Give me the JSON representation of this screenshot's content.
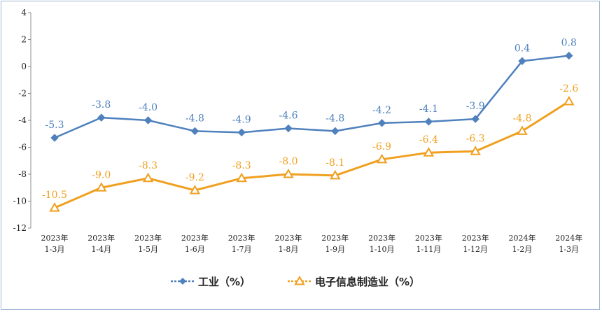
{
  "chart_data": {
    "type": "line",
    "title": "",
    "xlabel": "",
    "ylabel": "",
    "ylim": [
      -12,
      4
    ],
    "yticks": [
      4,
      2,
      0,
      -2,
      -4,
      -6,
      -8,
      -10,
      -12
    ],
    "categories": [
      [
        "2023年",
        "1-3月"
      ],
      [
        "2023年",
        "1-4月"
      ],
      [
        "2023年",
        "1-5月"
      ],
      [
        "2023年",
        "1-6月"
      ],
      [
        "2023年",
        "1-7月"
      ],
      [
        "2023年",
        "1-8月"
      ],
      [
        "2023年",
        "1-9月"
      ],
      [
        "2023年",
        "1-10月"
      ],
      [
        "2023年",
        "1-11月"
      ],
      [
        "2023年",
        "1-12月"
      ],
      [
        "2024年",
        "1-2月"
      ],
      [
        "2024年",
        "1-3月"
      ]
    ],
    "series": [
      {
        "name": "工业（%）",
        "color": "#4f81bd",
        "marker": "diamond",
        "values": [
          -5.3,
          -3.8,
          -4.0,
          -4.8,
          -4.9,
          -4.6,
          -4.8,
          -4.2,
          -4.1,
          -3.9,
          0.4,
          0.8
        ],
        "labels": [
          "-5.3",
          "-3.8",
          "-4.0",
          "-4.8",
          "-4.9",
          "-4.6",
          "-4.8",
          "-4.2",
          "-4.1",
          "-3.9",
          "0.4",
          "0.8"
        ]
      },
      {
        "name": "电子信息制造业（%）",
        "color": "#f0a020",
        "marker": "triangle",
        "values": [
          -10.5,
          -9.0,
          -8.3,
          -9.2,
          -8.3,
          -8.0,
          -8.1,
          -6.9,
          -6.4,
          -6.3,
          -4.8,
          -2.6
        ],
        "labels": [
          "-10.5",
          "-9.0",
          "-8.3",
          "-9.2",
          "-8.3",
          "-8.0",
          "-8.1",
          "-6.9",
          "-6.4",
          "-6.3",
          "-4.8",
          "-2.6"
        ]
      }
    ],
    "legend_position": "bottom",
    "grid": false
  }
}
